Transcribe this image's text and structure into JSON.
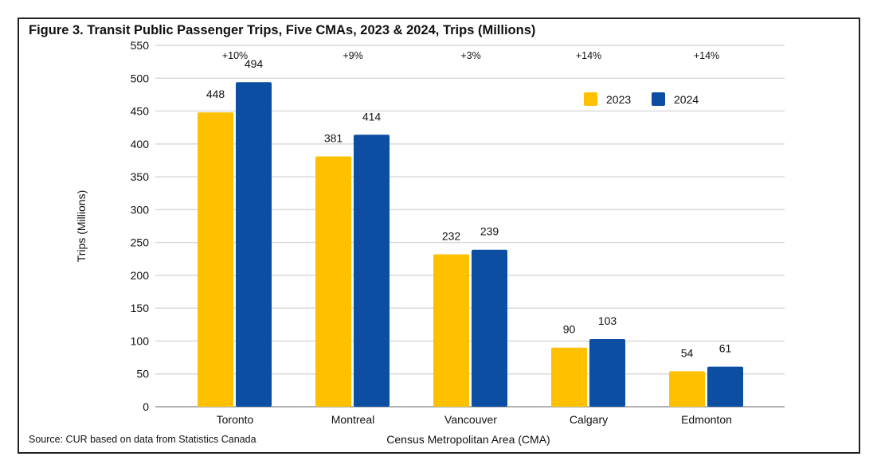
{
  "chart_data": {
    "type": "bar",
    "title": "Figure 3. Transit Public Passenger Trips, Five CMAs, 2023 & 2024, Trips (Millions)",
    "xlabel": "Census Metropolitan Area (CMA)",
    "ylabel": "Trips (Millions)",
    "ylim": [
      0,
      550
    ],
    "yticks": [
      0,
      50,
      100,
      150,
      200,
      250,
      300,
      350,
      400,
      450,
      500,
      550
    ],
    "grid": true,
    "legend_position": "top-right",
    "categories": [
      "Toronto",
      "Montreal",
      "Vancouver",
      "Calgary",
      "Edmonton"
    ],
    "series": [
      {
        "name": "2023",
        "color": "#FFC000",
        "values": [
          448,
          381,
          232,
          90,
          54
        ]
      },
      {
        "name": "2024",
        "color": "#0B4EA2",
        "values": [
          494,
          414,
          239,
          103,
          61
        ]
      }
    ],
    "annotations": [
      "+10%",
      "+9%",
      "+3%",
      "+14%",
      "+14%"
    ],
    "source": "Source: CUR based on data from Statistics Canada"
  }
}
